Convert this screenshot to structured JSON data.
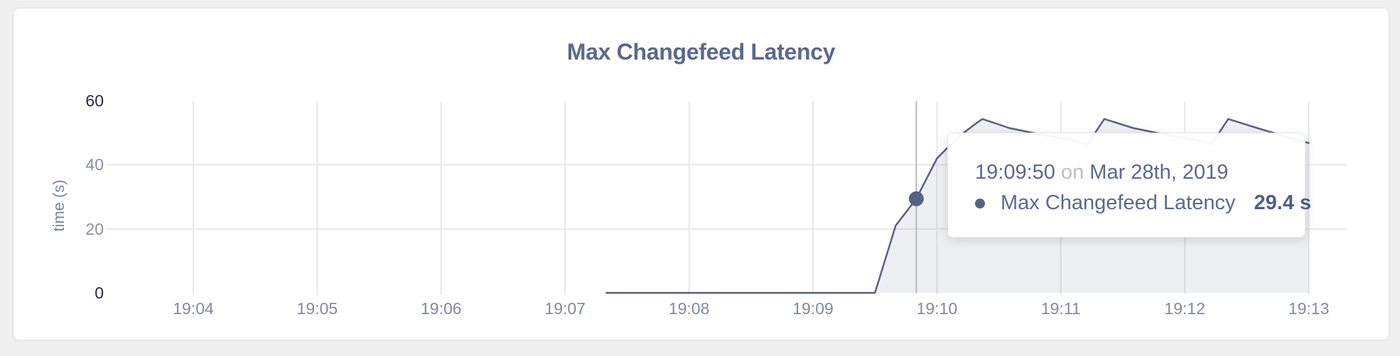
{
  "chart_data": {
    "type": "area",
    "title": "Max Changefeed Latency",
    "ylabel": "time (s)",
    "xlabel": "",
    "x_ticks": [
      "19:04",
      "19:05",
      "19:06",
      "19:07",
      "19:08",
      "19:09",
      "19:10",
      "19:11",
      "19:12",
      "19:13"
    ],
    "y_ticks": [
      0,
      20,
      40,
      60
    ],
    "ylim": [
      0,
      60
    ],
    "grid": "on",
    "series": [
      {
        "name": "Max Changefeed Latency",
        "unit": "s",
        "points": [
          [
            "19:07:20",
            0
          ],
          [
            "19:09:30",
            0
          ],
          [
            "19:09:40",
            21
          ],
          [
            "19:09:50",
            29.4
          ],
          [
            "19:10:00",
            42
          ],
          [
            "19:10:10",
            48.5
          ],
          [
            "19:10:18",
            52.5
          ],
          [
            "19:10:22",
            54.3
          ],
          [
            "19:10:35",
            51.5
          ],
          [
            "19:10:50",
            49.5
          ],
          [
            "19:11:05",
            47.8
          ],
          [
            "19:11:13",
            46.5
          ],
          [
            "19:11:21",
            54.3
          ],
          [
            "19:11:35",
            51.5
          ],
          [
            "19:11:50",
            49.5
          ],
          [
            "19:12:05",
            47.8
          ],
          [
            "19:12:13",
            46.5
          ],
          [
            "19:12:21",
            54.3
          ],
          [
            "19:12:35",
            51.5
          ],
          [
            "19:12:48",
            49
          ],
          [
            "19:13:00",
            46.8
          ]
        ]
      }
    ],
    "hover_point": {
      "time": "19:09:50",
      "value": 29.4
    },
    "colors": {
      "line": "#566283",
      "fill": "rgba(86,98,131,0.10)",
      "grid": "#e6e7eb",
      "crosshair": "#b7bac3"
    }
  },
  "tooltip": {
    "time": "19:09:50",
    "conj": "on",
    "date": "Mar 28th, 2019",
    "series_label": "Max Changefeed Latency",
    "value_text": "29.4 s"
  }
}
